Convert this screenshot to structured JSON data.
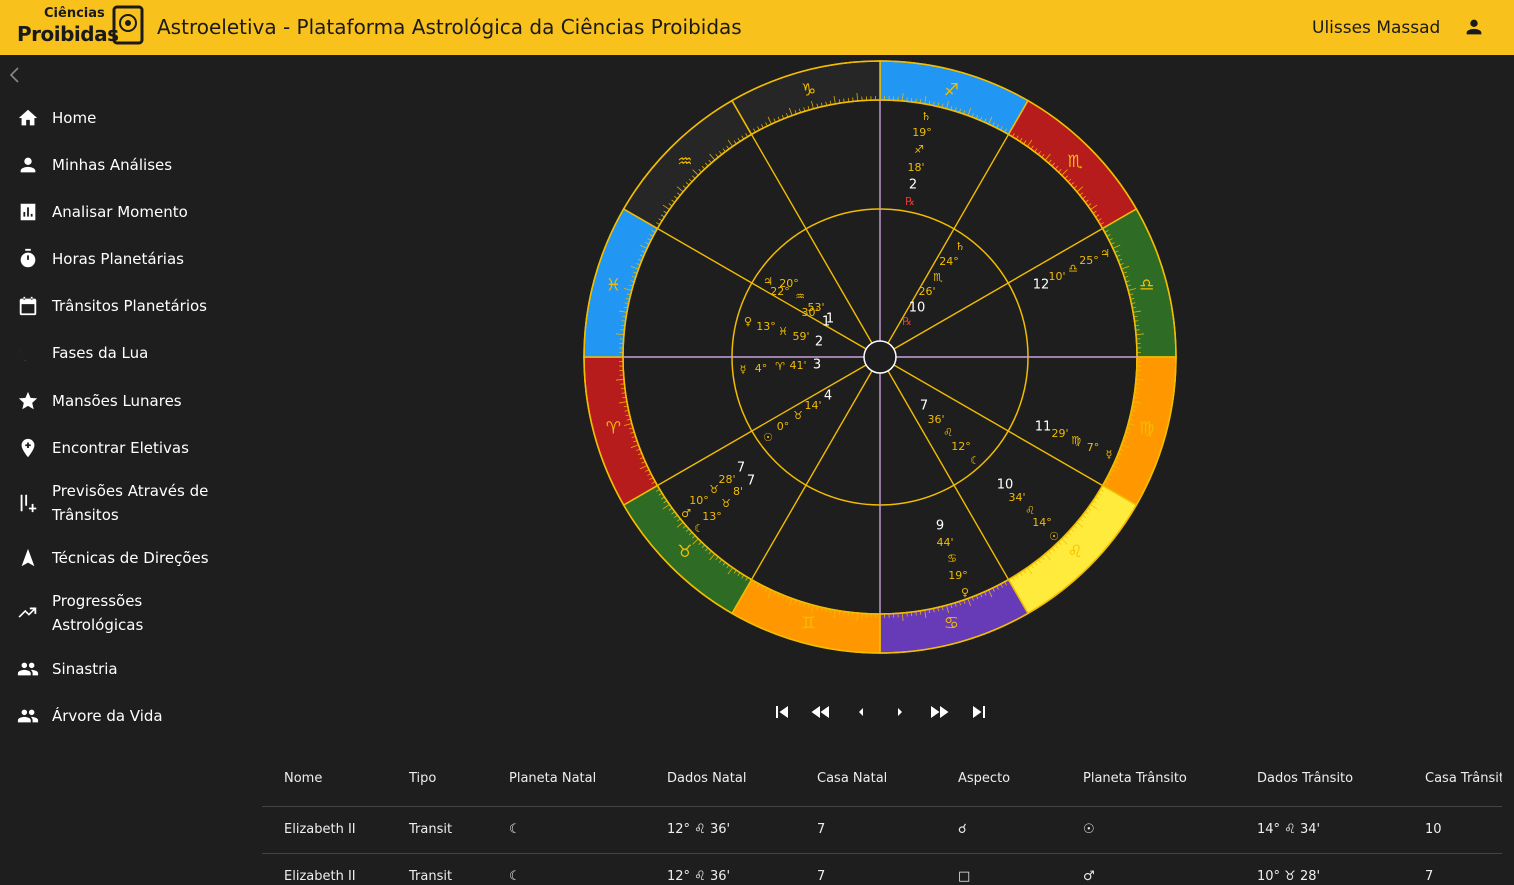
{
  "header": {
    "logo_top": "Ciências",
    "logo_bottom": "Proibidas",
    "title": "Astroeletiva - Plataforma Astrológica da Ciências Proibidas",
    "user": "Ulisses Massad"
  },
  "nav": {
    "items": [
      "Home",
      "Minhas Análises",
      "Analisar Momento",
      "Horas Planetárias",
      "Trânsitos Planetários",
      "Fases da Lua",
      "Mansões Lunares",
      "Encontrar Eletivas",
      "Previsões Através de Trânsitos",
      "Técnicas de Direções",
      "Progressões Astrológicas",
      "Sinastria",
      "Árvore da Vida"
    ]
  },
  "wheel": {
    "signs": [
      {
        "glyph": "♐",
        "color": "#2196f3"
      },
      {
        "glyph": "♏",
        "color": "#b71c1c"
      },
      {
        "glyph": "♎",
        "color": "#2e6b25"
      },
      {
        "glyph": "♍",
        "color": "#ff9800"
      },
      {
        "glyph": "♌",
        "color": "#ffeb3b"
      },
      {
        "glyph": "♋",
        "color": "#673ab7"
      },
      {
        "glyph": "♊",
        "color": "#ff9800"
      },
      {
        "glyph": "♉",
        "color": "#2e6b25"
      },
      {
        "glyph": "♈",
        "color": "#b71c1c"
      },
      {
        "glyph": "♓",
        "color": "#2196f3"
      },
      {
        "glyph": "♒",
        "color": "#262626"
      },
      {
        "glyph": "♑",
        "color": "#262626"
      }
    ],
    "labels": [
      "♄",
      "19°",
      "♐",
      "18'",
      "2",
      "℞",
      "♄",
      "24°",
      "♏",
      "26'",
      "10",
      "℞",
      "12",
      "10'",
      "♎",
      "25°",
      "♃",
      "11",
      "29'",
      "♍",
      "7°",
      "☿",
      "10",
      "34'",
      "♌",
      "14°",
      "☉",
      "9",
      "44'",
      "♋",
      "19°",
      "♀",
      "7",
      "7",
      "28'",
      "♉",
      "8'",
      "10°",
      "♉",
      "♂",
      "13°",
      "☾",
      "♃",
      "20°",
      "22°",
      "♒",
      "53'",
      "30'",
      "1",
      "1",
      "♀",
      "13°",
      "♓",
      "59'",
      "2",
      "☿",
      "4°",
      "♈",
      "41'",
      "3",
      "4",
      "14'",
      "♉",
      "0°",
      "☉",
      "7",
      "36'",
      "♌",
      "12°",
      "☾"
    ]
  },
  "table": {
    "headers": [
      "Nome",
      "Tipo",
      "Planeta Natal",
      "Dados Natal",
      "Casa Natal",
      "Aspecto",
      "Planeta Trânsito",
      "Dados Trânsito",
      "Casa Trânsito"
    ],
    "rows": [
      [
        "Elizabeth II",
        "Transit",
        "☾",
        "12° ♌ 36'",
        "7",
        "☌",
        "☉",
        "14° ♌ 34'",
        "10"
      ],
      [
        "Elizabeth II",
        "Transit",
        "☾",
        "12° ♌ 36'",
        "7",
        "□",
        "♂",
        "10° ♉ 28'",
        "7"
      ]
    ]
  }
}
